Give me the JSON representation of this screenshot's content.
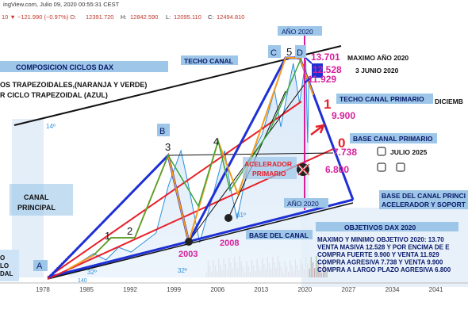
{
  "header": {
    "source": "ingView.com, Julio 09, 2020 00:55:31 CEST",
    "change": "10 ▼ −121.990 (−0.97%) O:",
    "open": "12391.720",
    "high_label": "H:",
    "high": "12842.590",
    "low_label": "L:",
    "low": "12095.110",
    "close_label": "C:",
    "close": "12494.810"
  },
  "boxes": {
    "composicion": "COMPOSICION CICLOS DAX",
    "trapezoidales": "OS TRAPEZOIDALES,(NARANJA Y VERDE)",
    "ciclo": "R CICLO TRAPEZOIDAL (AZUL)",
    "canal_principal_1": "CANAL",
    "canal_principal_2": "PRINCIPAL",
    "left_bottom_1": "O",
    "left_bottom_2": "LO",
    "left_bottom_3": "DAL",
    "techo_canal": "TECHO CANAL",
    "ano2020_top": "AÑO 2020",
    "ano2020_bottom": "AÑO 2020",
    "techo_primario": "TECHO CANAL PRIMARIO",
    "base_primario": "BASE CANAL PRIMARIO",
    "acelerador_1": "ACELERADOR",
    "acelerador_2": "PRIMARIO",
    "base_canal": "BASE DEL CANAL",
    "base_canal_princ_1": "BASE DEL CANAL PRINCI",
    "base_canal_princ_2": "ACELERADOR Y SOPORT",
    "objetivos_title": "OBJETIVOS DAX 2020",
    "objetivos_lines": [
      "MAXIMO Y MINIMO OBJETIVO 2020: 13.70",
      "VENTA MASIVA 12.528 Y POR ENCIMA DE E",
      "COMPRA FUERTE 9.900 Y VENTA 11.929",
      "COMPRA AGRESIVA 7.738 Y VENTA 9.900",
      "COMPRA A LARGO PLAZO AGRESIVA 6.800"
    ]
  },
  "annotations": {
    "max_2020": "MAXIMO AÑO 2020",
    "junio": "3 JUNIO 2020",
    "diciembre": "DICIEMB",
    "julio_2025": "JULIO 2025",
    "angle_14": "14º",
    "angle_61": "61º",
    "angle_32a": "32º",
    "angle_32b": "32º",
    "angle_140": "140"
  },
  "levels": [
    {
      "text": "13.701",
      "color": "#d6219a"
    },
    {
      "text": "12.528",
      "color": "#d6219a"
    },
    {
      "text": "11.929",
      "color": "#d6219a"
    },
    {
      "text": "9.900",
      "color": "#d6219a"
    },
    {
      "text": "7.738",
      "color": "#d6219a"
    },
    {
      "text": "6.800",
      "color": "#d6219a"
    }
  ],
  "colors": {
    "blue_cycle": "#1f2fd6",
    "orange": "#f39a1e",
    "green": "#3aa63a",
    "red": "#e8202a",
    "magenta": "#d6219a",
    "price": "#2a8fdc",
    "box_bg": "#9dc6e8",
    "box_text": "#0a1a6a"
  },
  "chart_data": {
    "type": "line",
    "title": "",
    "xlabel": "",
    "ylabel": "",
    "x_ticks": [
      "1978",
      "1985",
      "1992",
      "1999",
      "2006",
      "2013",
      "2020",
      "2027",
      "2034",
      "2041"
    ],
    "xlim": [
      1971,
      2046
    ],
    "series": [
      {
        "x": [
          1982,
          1986,
          1988,
          1990,
          1992,
          1994,
          1996,
          1998,
          2000,
          2001,
          2002,
          2003,
          2005,
          2007,
          2008,
          2009,
          2011,
          2013,
          2015,
          2016,
          2018,
          2019,
          2020,
          2020.3,
          2020.5
        ],
        "values": [
          500,
          1500,
          1100,
          1900,
          1600,
          2200,
          2800,
          5800,
          8000,
          6200,
          4200,
          2200,
          5000,
          8000,
          5500,
          3700,
          7500,
          9000,
          11800,
          9500,
          13500,
          11000,
          13700,
          8500,
          12500
        ]
      }
    ],
    "pivots": [
      "A",
      "1",
      "2",
      "3",
      "B",
      "4",
      "C",
      "5",
      "D",
      "0"
    ],
    "markers": [
      "2003",
      "2008"
    ]
  }
}
